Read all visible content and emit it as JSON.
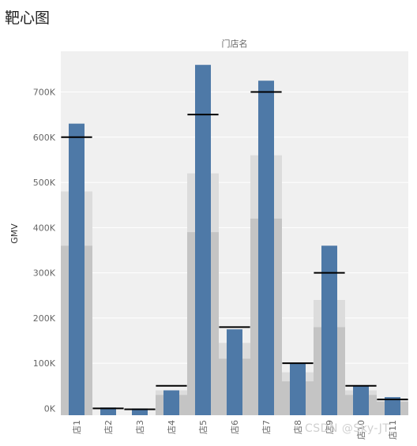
{
  "page_title": "靶心图",
  "watermark": "CSDN @Sky-JT",
  "chart_data": {
    "type": "bar",
    "column_header": "门店名",
    "ylabel": "GMV",
    "categories": [
      "店1",
      "店2",
      "店3",
      "店4",
      "店5",
      "店6",
      "店7",
      "店8",
      "店9",
      "店10",
      "店11"
    ],
    "ylim": [
      -15000,
      790000
    ],
    "yticks": [
      0,
      100000,
      200000,
      300000,
      400000,
      500000,
      600000,
      700000
    ],
    "ytick_labels": [
      "0K",
      "100K",
      "200K",
      "300K",
      "400K",
      "500K",
      "600K",
      "700K"
    ],
    "series": [
      {
        "values": [
          630000,
          2000,
          0,
          40000,
          760000,
          175000,
          725000,
          100000,
          360000,
          50000,
          25000
        ],
        "color": "#4e79a7"
      },
      {
        "values": [
          600000,
          0,
          -2000,
          50000,
          650000,
          180000,
          700000,
          100000,
          300000,
          50000,
          20000
        ],
        "color": "#000000"
      }
    ],
    "bands": {
      "upper": [
        480000,
        0,
        0,
        40000,
        520000,
        145000,
        560000,
        80000,
        240000,
        40000,
        20000
      ],
      "lower": [
        360000,
        0,
        0,
        30000,
        390000,
        110000,
        420000,
        60000,
        180000,
        30000,
        15000
      ],
      "upper_color": "#dcdcdc",
      "lower_color": "#c4c4c4"
    },
    "plot_background": "#f0f0f0",
    "grid": true
  }
}
